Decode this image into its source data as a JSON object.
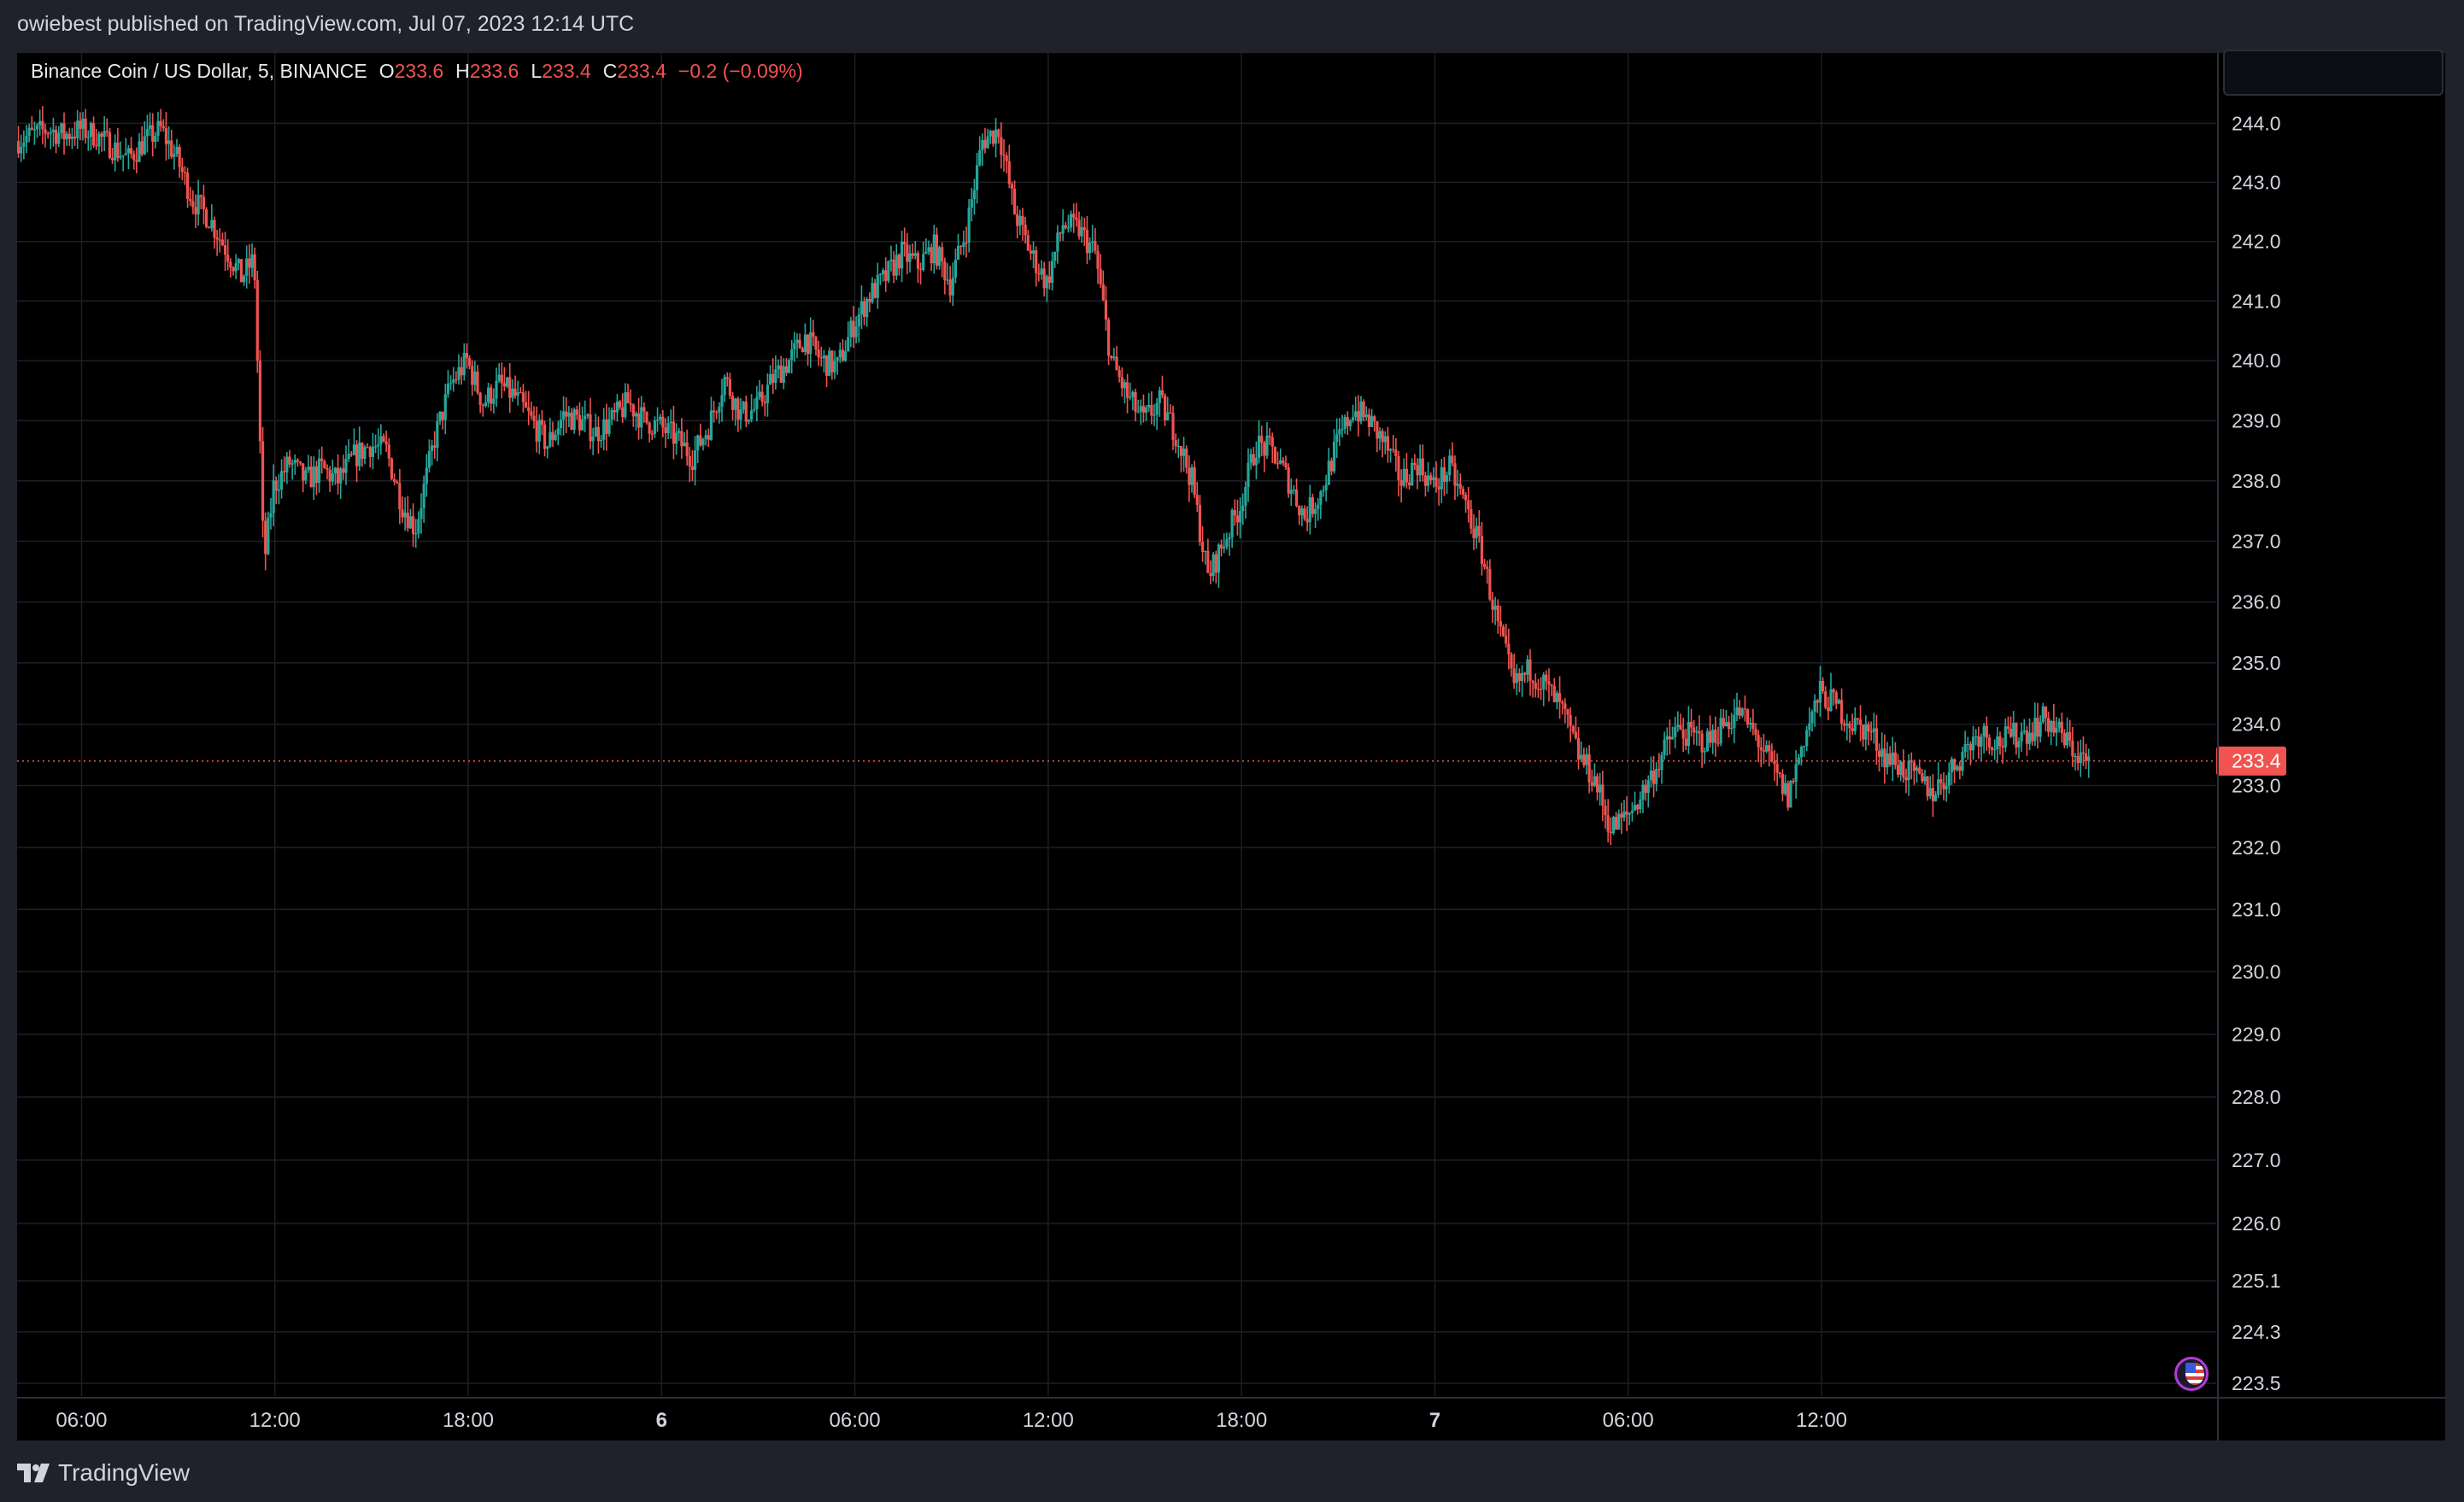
{
  "header": {
    "publisher_line": "owiebest published on TradingView.com, Jul 07, 2023 12:14 UTC"
  },
  "legend": {
    "symbol": "Binance Coin / US Dollar, 5, BINANCE",
    "open_key": "O",
    "open": "233.6",
    "high_key": "H",
    "high": "233.6",
    "low_key": "L",
    "low": "233.4",
    "close_key": "C",
    "close": "233.4",
    "change": "−0.2 (−0.09%)"
  },
  "footer": {
    "brand": "TradingView"
  },
  "colors": {
    "up": "#26a69a",
    "down": "#ef5350",
    "background": "#000000",
    "grid": "#1c1f26",
    "price_label": "#f05350"
  },
  "icons": [
    "tradingview-logo-icon",
    "us-flag-icon"
  ],
  "chart_data": {
    "type": "candlestick",
    "title": "Binance Coin / US Dollar, 5, BINANCE",
    "y_scale": "log",
    "ylim": [
      223.3,
      245.2
    ],
    "y_ticks": [
      244.0,
      243.0,
      242.0,
      241.0,
      240.0,
      239.0,
      238.0,
      237.0,
      236.0,
      235.0,
      234.0,
      233.0,
      232.0,
      231.0,
      230.0,
      229.0,
      228.0,
      227.0,
      226.0,
      225.1,
      224.3,
      223.5
    ],
    "x_ticks": [
      "06:00",
      "12:00",
      "18:00",
      "6",
      "06:00",
      "12:00",
      "18:00",
      "7",
      "06:00",
      "12:00"
    ],
    "x_ticks_bold": [
      "6",
      "7"
    ],
    "x_range": [
      "Jul 5 04:00",
      "Jul 7 12:15"
    ],
    "grid": true,
    "last_price": 233.4,
    "last_price_label": "233.4",
    "path": [
      [
        4.0,
        243.7
      ],
      [
        4.5,
        243.8
      ],
      [
        5.0,
        243.9
      ],
      [
        5.5,
        243.8
      ],
      [
        6.0,
        243.9
      ],
      [
        6.5,
        243.8
      ],
      [
        7.0,
        243.6
      ],
      [
        7.5,
        243.4
      ],
      [
        8.0,
        243.7
      ],
      [
        8.5,
        243.9
      ],
      [
        9.0,
        243.4
      ],
      [
        9.5,
        242.7
      ],
      [
        10.0,
        242.4
      ],
      [
        10.5,
        241.9
      ],
      [
        11.0,
        241.4
      ],
      [
        11.4,
        241.7
      ],
      [
        11.7,
        236.6
      ],
      [
        12.0,
        237.9
      ],
      [
        12.5,
        238.3
      ],
      [
        13.0,
        238.0
      ],
      [
        13.5,
        238.2
      ],
      [
        14.0,
        238.0
      ],
      [
        14.5,
        238.4
      ],
      [
        15.0,
        238.6
      ],
      [
        15.5,
        238.5
      ],
      [
        16.0,
        237.6
      ],
      [
        16.4,
        237.2
      ],
      [
        17.0,
        238.7
      ],
      [
        17.5,
        239.6
      ],
      [
        18.0,
        240.0
      ],
      [
        18.5,
        239.3
      ],
      [
        19.0,
        239.6
      ],
      [
        19.5,
        239.4
      ],
      [
        20.0,
        239.0
      ],
      [
        20.5,
        238.6
      ],
      [
        21.0,
        239.1
      ],
      [
        21.5,
        239.0
      ],
      [
        22.0,
        238.8
      ],
      [
        22.5,
        239.0
      ],
      [
        23.0,
        239.3
      ],
      [
        23.5,
        239.0
      ],
      [
        24.0,
        238.9
      ],
      [
        24.5,
        238.7
      ],
      [
        25.0,
        238.4
      ],
      [
        25.5,
        238.9
      ],
      [
        26.0,
        239.7
      ],
      [
        26.5,
        239.1
      ],
      [
        27.0,
        239.2
      ],
      [
        27.5,
        239.7
      ],
      [
        28.0,
        240.0
      ],
      [
        28.5,
        240.4
      ],
      [
        29.0,
        240.0
      ],
      [
        29.5,
        239.9
      ],
      [
        30.0,
        240.6
      ],
      [
        30.5,
        241.1
      ],
      [
        31.0,
        241.4
      ],
      [
        31.5,
        241.8
      ],
      [
        32.0,
        241.6
      ],
      [
        32.5,
        241.9
      ],
      [
        33.0,
        241.3
      ],
      [
        33.5,
        242.2
      ],
      [
        34.0,
        243.7
      ],
      [
        34.5,
        243.9
      ],
      [
        35.0,
        242.5
      ],
      [
        35.5,
        241.8
      ],
      [
        36.0,
        241.3
      ],
      [
        36.5,
        242.3
      ],
      [
        37.0,
        242.2
      ],
      [
        37.5,
        241.8
      ],
      [
        38.0,
        240.0
      ],
      [
        38.5,
        239.4
      ],
      [
        39.0,
        239.0
      ],
      [
        39.5,
        239.3
      ],
      [
        40.0,
        238.8
      ],
      [
        40.5,
        238.0
      ],
      [
        41.0,
        236.4
      ],
      [
        41.5,
        237.0
      ],
      [
        42.0,
        237.6
      ],
      [
        42.5,
        238.6
      ],
      [
        43.0,
        238.5
      ],
      [
        43.5,
        238.0
      ],
      [
        44.0,
        237.4
      ],
      [
        44.5,
        237.8
      ],
      [
        45.0,
        238.6
      ],
      [
        45.5,
        239.2
      ],
      [
        46.0,
        239.0
      ],
      [
        46.5,
        238.6
      ],
      [
        47.0,
        238.0
      ],
      [
        47.5,
        238.3
      ],
      [
        48.0,
        237.9
      ],
      [
        48.5,
        238.2
      ],
      [
        49.0,
        237.6
      ],
      [
        49.5,
        236.8
      ],
      [
        50.0,
        235.6
      ],
      [
        50.5,
        234.6
      ],
      [
        51.0,
        234.9
      ],
      [
        51.5,
        234.6
      ],
      [
        52.0,
        234.2
      ],
      [
        52.5,
        233.5
      ],
      [
        53.0,
        233.1
      ],
      [
        53.5,
        232.3
      ],
      [
        54.0,
        232.5
      ],
      [
        54.5,
        232.9
      ],
      [
        55.0,
        233.4
      ],
      [
        55.5,
        233.9
      ],
      [
        56.0,
        233.8
      ],
      [
        56.5,
        233.7
      ],
      [
        57.0,
        234.0
      ],
      [
        57.5,
        234.2
      ],
      [
        58.0,
        233.8
      ],
      [
        58.5,
        233.3
      ],
      [
        59.0,
        232.8
      ],
      [
        59.5,
        233.8
      ],
      [
        60.0,
        234.5
      ],
      [
        60.5,
        234.3
      ],
      [
        61.0,
        234.0
      ],
      [
        61.5,
        233.9
      ],
      [
        62.0,
        233.5
      ],
      [
        62.5,
        233.3
      ],
      [
        63.0,
        233.1
      ],
      [
        63.5,
        232.9
      ],
      [
        64.0,
        233.2
      ],
      [
        64.5,
        233.6
      ],
      [
        65.0,
        233.9
      ],
      [
        65.5,
        233.7
      ],
      [
        66.0,
        233.8
      ],
      [
        66.5,
        233.9
      ],
      [
        67.0,
        234.1
      ],
      [
        67.5,
        233.8
      ],
      [
        68.0,
        233.5
      ],
      [
        68.25,
        233.4
      ]
    ]
  }
}
